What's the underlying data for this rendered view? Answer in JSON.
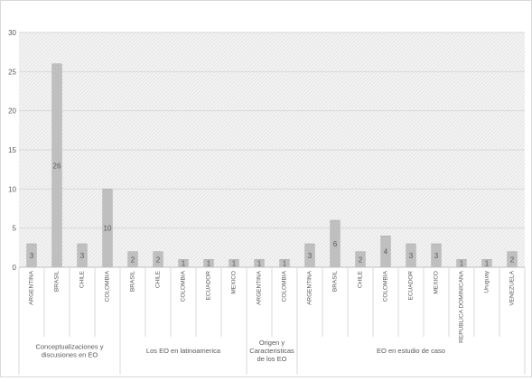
{
  "chart_data": {
    "type": "bar",
    "title": "",
    "xlabel": "",
    "ylabel": "",
    "ylim": [
      0,
      30
    ],
    "yticks": [
      0,
      5,
      10,
      15,
      20,
      25,
      30
    ],
    "grid": true,
    "legend": "none",
    "bar_color": "#bfbfbf",
    "bar_edge_color": "#a6a6a6",
    "plot_background": "hatched light gray",
    "groups": [
      {
        "name": "Conceptualizaciones y discusiones en EO",
        "categories": [
          "ARGENTINA",
          "BRASIL",
          "CHILE",
          "COLOMBIA"
        ],
        "values": [
          3,
          26,
          3,
          10
        ]
      },
      {
        "name": "Los EO en latinoamerica",
        "categories": [
          "BRASIL",
          "CHILE",
          "COLOMBIA",
          "ECUADOR",
          "MEXICO"
        ],
        "values": [
          2,
          2,
          1,
          1,
          1
        ]
      },
      {
        "name": "Origen y Caracteristicas de los EO",
        "categories": [
          "ARGENTINA",
          "COLOMBIA"
        ],
        "values": [
          1,
          1
        ]
      },
      {
        "name": "EO en estudio de caso",
        "categories": [
          "ARGENTINA",
          "BRASIL",
          "CHILE",
          "COLOMBIA",
          "ECUADOR",
          "MEXICO",
          "REPUBLICA DOMINICANA",
          "Uruguay",
          "VENEZUELA"
        ],
        "values": [
          3,
          6,
          2,
          4,
          3,
          3,
          1,
          1,
          2
        ]
      }
    ]
  }
}
